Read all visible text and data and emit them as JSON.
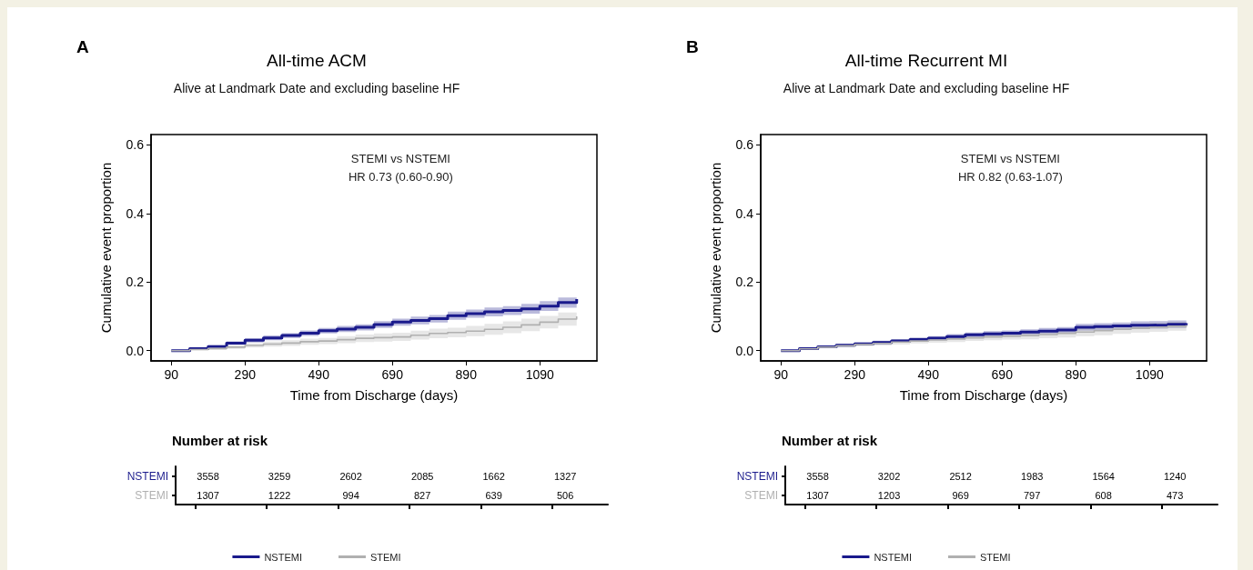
{
  "chart_data": [
    {
      "type": "step",
      "title": "All-time ACM",
      "subtitle": "Alive at Landmark Date and excluding baseline HF",
      "xlabel": "Time from Discharge (days)",
      "ylabel": "Cumulative event proportion",
      "x": [
        90,
        140,
        190,
        240,
        290,
        340,
        390,
        440,
        490,
        540,
        590,
        640,
        690,
        740,
        790,
        840,
        890,
        940,
        990,
        1040,
        1090,
        1140,
        1190
      ],
      "xlim": [
        35,
        1245
      ],
      "xticks": [
        90,
        290,
        490,
        690,
        890,
        1090
      ],
      "ylim": [
        -0.03,
        0.63
      ],
      "yticks": [
        {
          "value": 0,
          "label": "0.0"
        },
        0.2,
        0.4,
        0.6
      ],
      "series": [
        {
          "name": "NSTEMI",
          "color": "#1a1a8c",
          "values": [
            0,
            0.006,
            0.012,
            0.022,
            0.03,
            0.037,
            0.044,
            0.051,
            0.058,
            0.063,
            0.068,
            0.076,
            0.083,
            0.088,
            0.093,
            0.102,
            0.108,
            0.113,
            0.117,
            0.122,
            0.13,
            0.14,
            0.15
          ],
          "lower": [
            0,
            0.003,
            0.008,
            0.017,
            0.024,
            0.03,
            0.037,
            0.043,
            0.05,
            0.054,
            0.059,
            0.066,
            0.073,
            0.077,
            0.082,
            0.09,
            0.096,
            0.1,
            0.104,
            0.108,
            0.116,
            0.125,
            0.138
          ],
          "upper": [
            0,
            0.009,
            0.016,
            0.027,
            0.036,
            0.044,
            0.051,
            0.059,
            0.066,
            0.072,
            0.077,
            0.086,
            0.093,
            0.099,
            0.104,
            0.114,
            0.12,
            0.126,
            0.13,
            0.136,
            0.144,
            0.155,
            0.162
          ]
        },
        {
          "name": "STEMI",
          "color": "#b0b0b0",
          "values": [
            0,
            0.003,
            0.006,
            0.01,
            0.015,
            0.019,
            0.022,
            0.026,
            0.028,
            0.032,
            0.036,
            0.038,
            0.04,
            0.045,
            0.05,
            0.053,
            0.057,
            0.062,
            0.068,
            0.075,
            0.083,
            0.092,
            0.1
          ],
          "lower": [
            0,
            0.001,
            0.002,
            0.005,
            0.009,
            0.012,
            0.014,
            0.017,
            0.019,
            0.022,
            0.025,
            0.026,
            0.028,
            0.032,
            0.036,
            0.039,
            0.042,
            0.046,
            0.051,
            0.057,
            0.065,
            0.073,
            0.08
          ],
          "upper": [
            0,
            0.005,
            0.01,
            0.015,
            0.021,
            0.026,
            0.03,
            0.035,
            0.037,
            0.042,
            0.047,
            0.05,
            0.052,
            0.058,
            0.064,
            0.067,
            0.072,
            0.078,
            0.085,
            0.093,
            0.101,
            0.111,
            0.12
          ]
        }
      ],
      "annotations": [
        "A",
        "STEMI vs NSTEMI",
        "HR 0.73 (0.60-0.90)",
        "Number at risk",
        "3558",
        "3259",
        "2602",
        "2085",
        "1662",
        "1327",
        "1307",
        "1222",
        "994",
        "827",
        "639",
        "506"
      ],
      "grid": false,
      "marker": "none",
      "legend": "bottom"
    },
    {
      "type": "step",
      "title": "All-time Recurrent MI",
      "subtitle": "Alive at Landmark Date and excluding baseline HF",
      "xlabel": "Time from Discharge (days)",
      "ylabel": "Cumulative event proportion",
      "x": [
        90,
        140,
        190,
        240,
        290,
        340,
        390,
        440,
        490,
        540,
        590,
        640,
        690,
        740,
        790,
        840,
        890,
        940,
        990,
        1040,
        1090,
        1140,
        1190
      ],
      "xlim": [
        35,
        1245
      ],
      "xticks": [
        90,
        290,
        490,
        690,
        890,
        1090
      ],
      "ylim": [
        -0.03,
        0.63
      ],
      "yticks": [
        {
          "value": 0,
          "label": "0.0"
        },
        0.2,
        0.4,
        0.6
      ],
      "series": [
        {
          "name": "NSTEMI",
          "color": "#1a1a8c",
          "values": [
            0,
            0.006,
            0.011,
            0.016,
            0.02,
            0.024,
            0.028,
            0.032,
            0.036,
            0.041,
            0.046,
            0.049,
            0.051,
            0.054,
            0.057,
            0.06,
            0.068,
            0.07,
            0.072,
            0.074,
            0.075,
            0.077,
            0.08
          ],
          "lower": [
            0,
            0.004,
            0.008,
            0.012,
            0.016,
            0.019,
            0.023,
            0.026,
            0.03,
            0.034,
            0.039,
            0.041,
            0.043,
            0.046,
            0.048,
            0.051,
            0.058,
            0.06,
            0.062,
            0.063,
            0.064,
            0.066,
            0.069
          ],
          "upper": [
            0,
            0.008,
            0.014,
            0.02,
            0.024,
            0.029,
            0.033,
            0.038,
            0.042,
            0.048,
            0.053,
            0.057,
            0.059,
            0.062,
            0.066,
            0.069,
            0.078,
            0.08,
            0.082,
            0.085,
            0.086,
            0.088,
            0.091
          ]
        },
        {
          "name": "STEMI",
          "color": "#b0b0b0",
          "values": [
            0,
            0.005,
            0.01,
            0.014,
            0.018,
            0.021,
            0.025,
            0.028,
            0.031,
            0.034,
            0.037,
            0.04,
            0.042,
            0.044,
            0.047,
            0.05,
            0.054,
            0.058,
            0.062,
            0.065,
            0.068,
            0.071,
            0.075
          ],
          "lower": [
            0,
            0.003,
            0.007,
            0.01,
            0.013,
            0.015,
            0.018,
            0.021,
            0.023,
            0.025,
            0.028,
            0.03,
            0.032,
            0.033,
            0.036,
            0.038,
            0.042,
            0.045,
            0.049,
            0.052,
            0.055,
            0.058,
            0.062
          ],
          "upper": [
            0,
            0.007,
            0.013,
            0.018,
            0.023,
            0.027,
            0.032,
            0.035,
            0.039,
            0.043,
            0.046,
            0.05,
            0.052,
            0.055,
            0.058,
            0.062,
            0.066,
            0.071,
            0.075,
            0.078,
            0.081,
            0.084,
            0.088
          ]
        }
      ],
      "annotations": [
        "B",
        "STEMI vs NSTEMI",
        "HR 0.82 (0.63-1.07)",
        "Number at risk",
        "3558",
        "3202",
        "2512",
        "1983",
        "1564",
        "1240",
        "1307",
        "1203",
        "969",
        "797",
        "608",
        "473"
      ],
      "grid": false,
      "marker": "none",
      "legend": "bottom"
    }
  ]
}
